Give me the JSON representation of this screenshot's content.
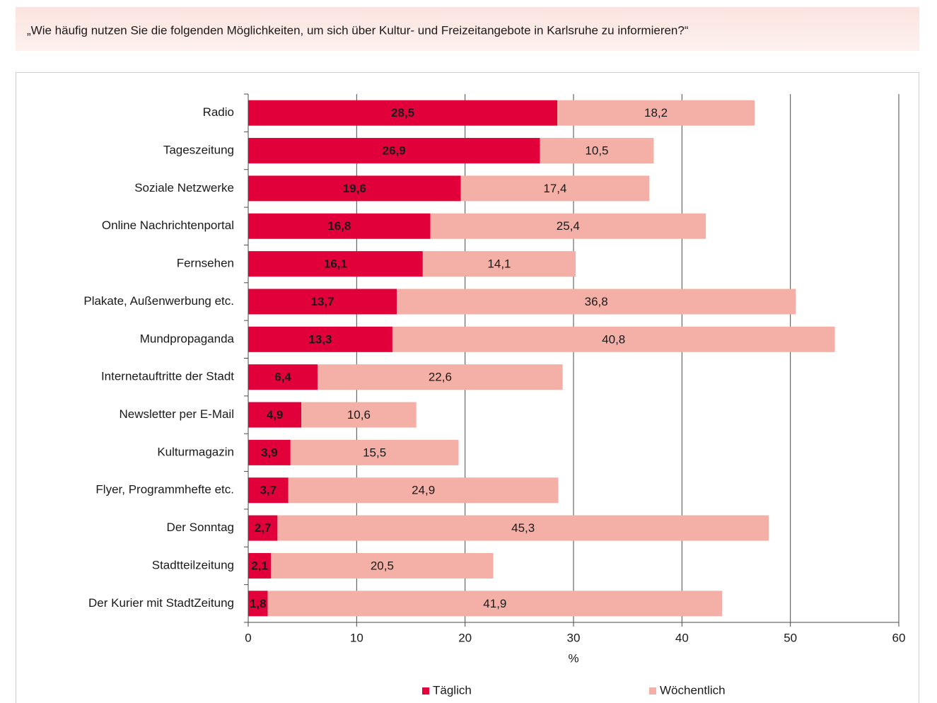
{
  "chart_data": {
    "type": "bar",
    "orientation": "horizontal",
    "stacked": true,
    "title": "„Wie häufig nutzen Sie die folgenden Möglichkeiten, um sich über Kultur- und Freizeitangebote in Karlsruhe zu informieren?“",
    "x_label": "%",
    "categories": [
      "Radio",
      "Tageszeitung",
      "Soziale Netzwerke",
      "Online Nachrichtenportal",
      "Fernsehen",
      "Plakate, Außenwerbung etc.",
      "Mundpropaganda",
      "Internetauftritte der Stadt",
      "Newsletter per E-Mail",
      "Kulturmagazin",
      "Flyer, Programmhefte etc.",
      "Der Sonntag",
      "Stadtteilzeitung",
      "Der Kurier mit StadtZeitung"
    ],
    "series": [
      {
        "name": "Täglich",
        "color": "#e2003a",
        "label_color": "#ffffff",
        "values": [
          28.5,
          26.9,
          19.6,
          16.8,
          16.1,
          13.7,
          13.3,
          6.4,
          4.9,
          3.9,
          3.7,
          2.7,
          2.1,
          1.8
        ],
        "value_labels": [
          "28,5",
          "26,9",
          "19,6",
          "16,8",
          "16,1",
          "13,7",
          "13,3",
          "6,4",
          "4,9",
          "3,9",
          "3,7",
          "2,7",
          "2,1",
          "1,8"
        ]
      },
      {
        "name": "Wöchentlich",
        "color": "#f4b0a6",
        "label_color": "#1a1a1a",
        "values": [
          18.2,
          10.5,
          17.4,
          25.4,
          14.1,
          36.8,
          40.8,
          22.6,
          10.6,
          15.5,
          24.9,
          45.3,
          20.5,
          41.9
        ],
        "value_labels": [
          "18,2",
          "10,5",
          "17,4",
          "25,4",
          "14,1",
          "36,8",
          "40,8",
          "22,6",
          "10,6",
          "15,5",
          "24,9",
          "45,3",
          "20,5",
          "41,9"
        ]
      }
    ],
    "xlim": [
      0,
      60
    ],
    "xticks": [
      0,
      10,
      20,
      30,
      40,
      50,
      60
    ],
    "grid": true,
    "legend": "bottom"
  }
}
